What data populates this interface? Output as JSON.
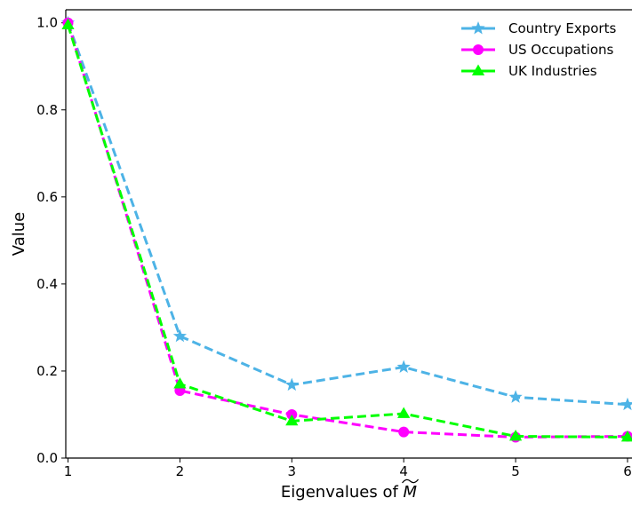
{
  "chart_data": {
    "type": "line",
    "xlabel": "Eigenvalues of M",
    "xlabel_accent": "~",
    "ylabel": "Value",
    "x": [
      1,
      2,
      3,
      4,
      5,
      6
    ],
    "xticks": [
      "1",
      "2",
      "3",
      "4",
      "5",
      "6"
    ],
    "yticks": [
      "0.0",
      "0.2",
      "0.4",
      "0.6",
      "0.8",
      "1.0"
    ],
    "xlim": [
      0.98,
      6.04
    ],
    "ylim": [
      0.0,
      1.03
    ],
    "grid": false,
    "legend_position": "top-right",
    "series": [
      {
        "name": "Country Exports",
        "color": "#4db3e6",
        "marker": "star",
        "values": [
          1.0,
          0.28,
          0.168,
          0.209,
          0.14,
          0.123
        ]
      },
      {
        "name": "US Occupations",
        "color": "#ff00ff",
        "marker": "circle",
        "values": [
          1.0,
          0.155,
          0.1,
          0.06,
          0.048,
          0.05
        ]
      },
      {
        "name": "UK Industries",
        "color": "#00ff00",
        "marker": "triangle",
        "values": [
          0.995,
          0.17,
          0.085,
          0.102,
          0.05,
          0.048
        ]
      }
    ]
  }
}
